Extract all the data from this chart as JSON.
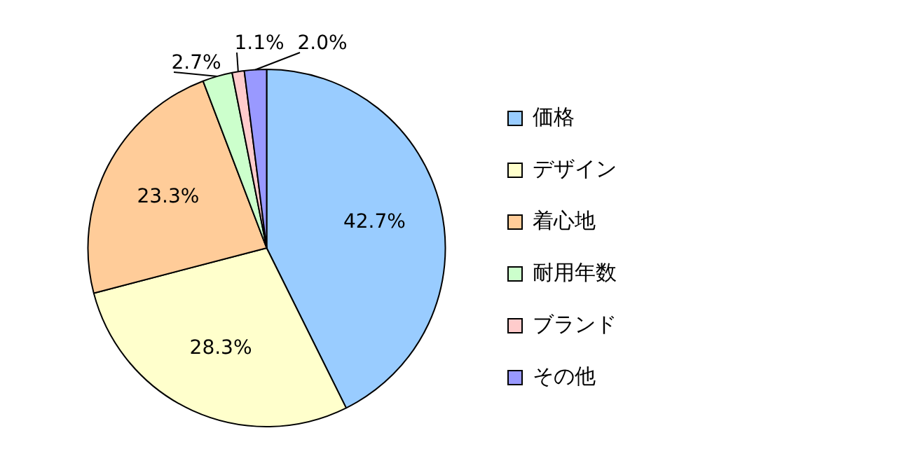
{
  "chart_data": {
    "type": "pie",
    "categories": [
      "価格",
      "デザイン",
      "着心地",
      "耐用年数",
      "ブランド",
      "その他"
    ],
    "values": [
      42.7,
      28.3,
      23.3,
      2.7,
      1.1,
      2.0
    ],
    "value_labels": [
      "42.7%",
      "28.3%",
      "23.3%",
      "2.7%",
      "1.1%",
      "2.0%"
    ],
    "colors": [
      "#99ccff",
      "#ffffcc",
      "#ffcc99",
      "#ccffcc",
      "#ffcccc",
      "#9999ff"
    ],
    "legend": "right"
  }
}
